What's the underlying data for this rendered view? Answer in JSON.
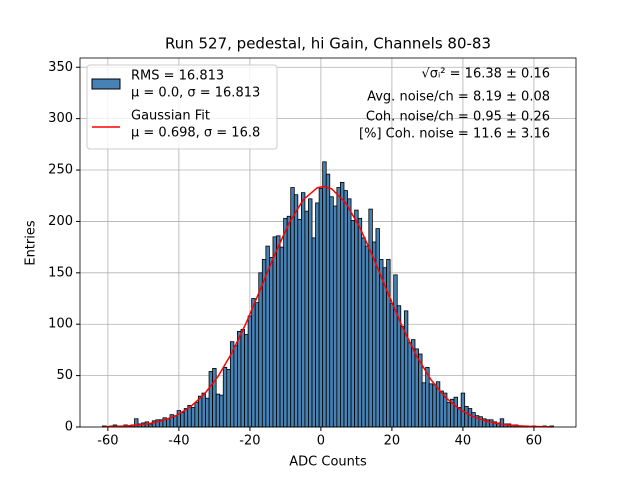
{
  "chart_data": {
    "type": "histogram",
    "title": "Run 527, pedestal, hi Gain, Channels 80-83",
    "x_label": "ADC Counts",
    "y_label": "Entries",
    "xlim": [
      -67.85,
      71.85
    ],
    "ylim": [
      0,
      359
    ],
    "xticks": [
      -60,
      -40,
      -20,
      0,
      20,
      40,
      60
    ],
    "yticks": [
      0,
      50,
      100,
      150,
      200,
      250,
      300,
      350
    ],
    "grid": true,
    "legend": "upper left",
    "bins": [
      -61.5,
      -60.5,
      -59.5,
      -58.5,
      -57.5,
      -56.5,
      -55.5,
      -54.5,
      -53.5,
      -52.5,
      -51.5,
      -50.5,
      -49.5,
      -48.5,
      -47.5,
      -46.5,
      -45.5,
      -44.5,
      -43.5,
      -42.5,
      -41.5,
      -40.5,
      -39.5,
      -38.5,
      -37.5,
      -36.5,
      -35.5,
      -34.5,
      -33.5,
      -32.5,
      -31.5,
      -30.5,
      -29.5,
      -28.5,
      -27.5,
      -26.5,
      -25.5,
      -24.5,
      -23.5,
      -22.5,
      -21.5,
      -20.5,
      -19.5,
      -18.5,
      -17.5,
      -16.5,
      -15.5,
      -14.5,
      -13.5,
      -12.5,
      -11.5,
      -10.5,
      -9.5,
      -8.5,
      -7.5,
      -6.5,
      -5.5,
      -4.5,
      -3.5,
      -2.5,
      -1.5,
      -0.5,
      0.5,
      1.5,
      2.5,
      3.5,
      4.5,
      5.5,
      6.5,
      7.5,
      8.5,
      9.5,
      10.5,
      11.5,
      12.5,
      13.5,
      14.5,
      15.5,
      16.5,
      17.5,
      18.5,
      19.5,
      20.5,
      21.5,
      22.5,
      23.5,
      24.5,
      25.5,
      26.5,
      27.5,
      28.5,
      29.5,
      30.5,
      31.5,
      32.5,
      33.5,
      34.5,
      35.5,
      36.5,
      37.5,
      38.5,
      39.5,
      40.5,
      41.5,
      42.5,
      43.5,
      44.5,
      45.5,
      46.5,
      47.5,
      48.5,
      49.5,
      50.5,
      51.5,
      52.5,
      53.5,
      54.5,
      55.5,
      56.5,
      57.5,
      58.5,
      59.5,
      60.5,
      61.5,
      62.5,
      63.5,
      64.5,
      65.5
    ],
    "series": [
      {
        "name": "RMS = 16.813",
        "name2": "μ = 0.0, σ = 16.813",
        "color": "#4682b4",
        "edgecolor": "#000000",
        "counts": [
          1,
          0,
          1,
          2,
          1,
          1,
          2,
          1,
          2,
          8,
          3,
          4,
          5,
          3,
          6,
          7,
          7,
          9,
          8,
          12,
          11,
          16,
          14,
          18,
          21,
          19,
          24,
          30,
          33,
          28,
          54,
          57,
          32,
          31,
          58,
          56,
          83,
          79,
          93,
          95,
          90,
          108,
          125,
          121,
          150,
          163,
          176,
          165,
          185,
          186,
          175,
          203,
          205,
          233,
          226,
          202,
          228,
          210,
          222,
          184,
          218,
          232,
          258,
          246,
          224,
          215,
          233,
          238,
          230,
          222,
          201,
          211,
          203,
          184,
          176,
          212,
          180,
          193,
          163,
          155,
          163,
          120,
          148,
          118,
          98,
          113,
          82,
          85,
          76,
          71,
          43,
          58,
          42,
          41,
          44,
          35,
          33,
          24,
          27,
          29,
          19,
          33,
          20,
          18,
          14,
          11,
          10,
          8,
          7,
          7,
          5,
          4,
          8,
          3,
          3,
          2,
          2,
          1,
          1,
          1,
          0,
          1,
          0,
          0,
          1,
          0,
          1
        ]
      },
      {
        "name": "Gaussian Fit",
        "name2": "μ = 0.698, σ = 16.8",
        "color": "#ff0000",
        "x": [
          -61,
          -57,
          -53,
          -49,
          -45,
          -41,
          -37,
          -33,
          -29,
          -25,
          -21,
          -17,
          -13,
          -9,
          -5,
          -1,
          0.7,
          3,
          7,
          11,
          15,
          19,
          23,
          27,
          31,
          35,
          39,
          43,
          47,
          51,
          55,
          59,
          63,
          65
        ],
        "values": [
          0.28,
          0.64,
          1.41,
          2.94,
          5.78,
          10.7,
          18.9,
          31.3,
          49.0,
          72.6,
          101.6,
          134.4,
          167.8,
          198.1,
          221,
          232.8,
          234,
          231.8,
          218.1,
          193.9,
          162.9,
          129.3,
          97.0,
          68.7,
          46.0,
          29.1,
          17.4,
          9.8,
          5.2,
          2.65,
          1.26,
          0.57,
          0.24,
          0.15
        ]
      }
    ],
    "annotations": [
      "√σᵢ² = 16.38 ± 0.16",
      "Avg. noise/ch = 8.19 ± 0.08",
      "Coh. noise/ch = 0.95 ± 0.26",
      "[%] Coh. noise = 11.6 ± 3.16"
    ]
  }
}
